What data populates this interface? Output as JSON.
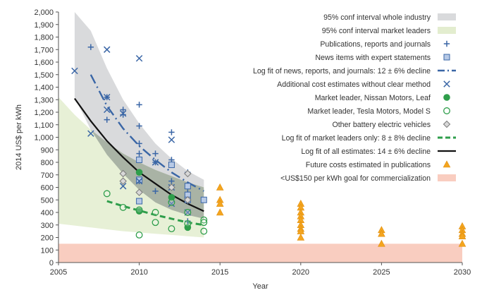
{
  "chart_data": {
    "type": "scatter",
    "xlabel": "Year",
    "ylabel": "2014 US$ per kWh",
    "xlim": [
      2005,
      2030
    ],
    "ylim": [
      0,
      2000
    ],
    "x_ticks": [
      "2005",
      "2010",
      "2015",
      "2020",
      "2025",
      "2030"
    ],
    "y_ticks": [
      "0",
      "100",
      "200",
      "300",
      "400",
      "500",
      "600",
      "700",
      "800",
      "900",
      "1,000",
      "1,100",
      "1,200",
      "1,300",
      "1,400",
      "1,500",
      "1,600",
      "1,700",
      "1,800",
      "1,900",
      "2,000"
    ],
    "grid": false,
    "legend_position": "top-right",
    "colors": {
      "industry_band": "#d9dadc",
      "leaders_band": "#e3edcf",
      "overlap_band": "#a9b3a5",
      "blue": "#3a66a6",
      "green": "#2f9e4b",
      "gray_marker": "#7f7f7f",
      "black": "#111111",
      "orange": "#f4a51f",
      "goal": "#f9cdc0"
    },
    "legend": [
      {
        "key": "band_industry",
        "label": "95% conf interval whole industry"
      },
      {
        "key": "band_leaders",
        "label": "95% conf interval market leaders"
      },
      {
        "key": "pubs",
        "label": "Publications, reports and journals"
      },
      {
        "key": "news",
        "label": "News items with expert statements"
      },
      {
        "key": "fit_news",
        "label": "Log fit of news, reports, and journals: 12 ± 6% decline"
      },
      {
        "key": "unclear",
        "label": "Additional cost estimates without clear method"
      },
      {
        "key": "nissan",
        "label": "Market leader, Nissan Motors, Leaf"
      },
      {
        "key": "tesla",
        "label": "Market leader, Tesla Motors, Model S"
      },
      {
        "key": "other",
        "label": "Other battery electric vehicles"
      },
      {
        "key": "fit_leaders",
        "label": "Log fit of market leaders only: 8 ± 8% decline"
      },
      {
        "key": "fit_all",
        "label": "Log fit of all estimates: 14 ± 6% decline"
      },
      {
        "key": "future",
        "label": "Future costs estimated in publications"
      },
      {
        "key": "goal",
        "label": "<US$150 per kWh goal for commercialization"
      }
    ],
    "bands": {
      "industry": {
        "x": [
          2006,
          2007,
          2008,
          2009,
          2010,
          2011,
          2012,
          2013,
          2014
        ],
        "upper": [
          2000,
          1850,
          1550,
          1300,
          1110,
          950,
          830,
          730,
          660
        ],
        "lower": [
          1320,
          1060,
          860,
          710,
          580,
          480,
          420,
          380,
          350
        ]
      },
      "leaders": {
        "x": [
          2005,
          2006,
          2007,
          2008,
          2009,
          2010,
          2011,
          2012,
          2013,
          2014
        ],
        "upper": [
          1320,
          1180,
          1060,
          960,
          870,
          800,
          740,
          690,
          640,
          600
        ],
        "lower": [
          310,
          295,
          280,
          265,
          250,
          240,
          230,
          220,
          210,
          200
        ]
      }
    },
    "goal_band": {
      "x": [
        2005,
        2030
      ],
      "upper": 150,
      "lower": 0
    },
    "fits": {
      "fit_news": {
        "x": [
          2007,
          2008,
          2009,
          2010,
          2011,
          2012,
          2013,
          2014
        ],
        "y": [
          1500,
          1250,
          1070,
          930,
          820,
          720,
          640,
          570
        ]
      },
      "fit_leaders": {
        "x": [
          2008,
          2009,
          2010,
          2011,
          2012,
          2013,
          2014
        ],
        "y": [
          490,
          450,
          415,
          380,
          350,
          320,
          300
        ]
      },
      "fit_all": {
        "x": [
          2006,
          2007,
          2008,
          2009,
          2010,
          2011,
          2012,
          2013,
          2014
        ],
        "y": [
          1310,
          1130,
          970,
          840,
          720,
          630,
          540,
          470,
          410
        ]
      }
    },
    "series": [
      {
        "key": "pubs",
        "points": [
          [
            2007,
            1720
          ],
          [
            2008,
            1320
          ],
          [
            2008,
            1140
          ],
          [
            2009,
            1220
          ],
          [
            2009,
            1180
          ],
          [
            2010,
            1260
          ],
          [
            2010,
            1090
          ],
          [
            2010,
            950
          ],
          [
            2010,
            870
          ],
          [
            2010,
            720
          ],
          [
            2010,
            650
          ],
          [
            2011,
            870
          ],
          [
            2011,
            800
          ],
          [
            2011,
            570
          ],
          [
            2012,
            1040
          ],
          [
            2012,
            820
          ],
          [
            2012,
            650
          ],
          [
            2012,
            520
          ],
          [
            2013,
            720
          ],
          [
            2013,
            560
          ],
          [
            2013,
            510
          ],
          [
            2013,
            490
          ],
          [
            2013,
            330
          ]
        ]
      },
      {
        "key": "news",
        "points": [
          [
            2010,
            820
          ],
          [
            2010,
            660
          ],
          [
            2010,
            490
          ],
          [
            2012,
            780
          ],
          [
            2013,
            610
          ],
          [
            2013,
            540
          ],
          [
            2013,
            500
          ],
          [
            2014,
            500
          ]
        ]
      },
      {
        "key": "unclear",
        "points": [
          [
            2006,
            1530
          ],
          [
            2007,
            1030
          ],
          [
            2008,
            1700
          ],
          [
            2008,
            1320
          ],
          [
            2008,
            1220
          ],
          [
            2009,
            1190
          ],
          [
            2009,
            610
          ],
          [
            2010,
            1630
          ],
          [
            2010,
            650
          ],
          [
            2011,
            800
          ],
          [
            2012,
            980
          ],
          [
            2012,
            600
          ],
          [
            2012,
            470
          ],
          [
            2013,
            400
          ]
        ]
      },
      {
        "key": "nissan",
        "points": [
          [
            2010,
            720
          ],
          [
            2010,
            410
          ],
          [
            2012,
            520
          ],
          [
            2013,
            280
          ]
        ]
      },
      {
        "key": "tesla",
        "points": [
          [
            2008,
            550
          ],
          [
            2009,
            440
          ],
          [
            2010,
            420
          ],
          [
            2010,
            220
          ],
          [
            2011,
            400
          ],
          [
            2011,
            320
          ],
          [
            2012,
            480
          ],
          [
            2012,
            270
          ],
          [
            2013,
            400
          ],
          [
            2013,
            310
          ],
          [
            2014,
            340
          ],
          [
            2014,
            320
          ],
          [
            2014,
            250
          ]
        ]
      },
      {
        "key": "other",
        "points": [
          [
            2009,
            710
          ],
          [
            2009,
            650
          ],
          [
            2010,
            560
          ],
          [
            2012,
            600
          ],
          [
            2013,
            710
          ],
          [
            2013,
            500
          ]
        ]
      },
      {
        "key": "future",
        "points": [
          [
            2015,
            600
          ],
          [
            2015,
            500
          ],
          [
            2015,
            470
          ],
          [
            2015,
            400
          ],
          [
            2020,
            470
          ],
          [
            2020,
            440
          ],
          [
            2020,
            400
          ],
          [
            2020,
            370
          ],
          [
            2020,
            340
          ],
          [
            2020,
            300
          ],
          [
            2020,
            270
          ],
          [
            2020,
            250
          ],
          [
            2020,
            200
          ],
          [
            2025,
            260
          ],
          [
            2025,
            230
          ],
          [
            2025,
            150
          ],
          [
            2030,
            290
          ],
          [
            2030,
            260
          ],
          [
            2030,
            230
          ],
          [
            2030,
            210
          ],
          [
            2030,
            150
          ]
        ]
      }
    ]
  }
}
